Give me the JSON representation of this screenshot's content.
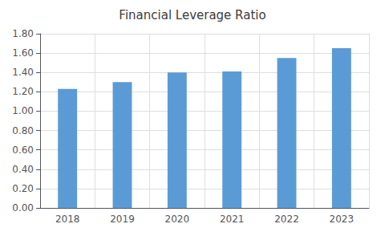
{
  "chart_data": {
    "type": "bar",
    "title": "Financial Leverage Ratio",
    "categories": [
      "2018",
      "2019",
      "2020",
      "2021",
      "2022",
      "2023"
    ],
    "values": [
      1.23,
      1.3,
      1.4,
      1.41,
      1.55,
      1.65
    ],
    "color": "#5B9BD5",
    "ylim": [
      0.0,
      1.8
    ],
    "yticks": [
      {
        "value": 0.0,
        "label": "0.00"
      },
      {
        "value": 0.2,
        "label": "0.20"
      },
      {
        "value": 0.4,
        "label": "0.40"
      },
      {
        "value": 0.6,
        "label": "0.60"
      },
      {
        "value": 0.8,
        "label": "0.80"
      },
      {
        "value": 1.0,
        "label": "1.00"
      },
      {
        "value": 1.2,
        "label": "1.20"
      },
      {
        "value": 1.4,
        "label": "1.40"
      },
      {
        "value": 1.6,
        "label": "1.60"
      },
      {
        "value": 1.8,
        "label": "1.80"
      }
    ],
    "grid": true
  }
}
